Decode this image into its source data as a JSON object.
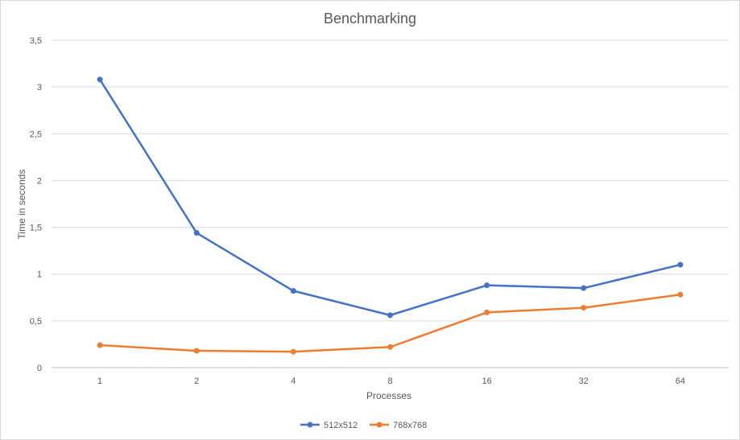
{
  "chart_data": {
    "type": "line",
    "title": "Benchmarking",
    "xlabel": "Processes",
    "ylabel": "Time in seconds",
    "categories": [
      "1",
      "2",
      "4",
      "8",
      "16",
      "32",
      "64"
    ],
    "y_ticks": [
      "0",
      "0,5",
      "1",
      "1,5",
      "2",
      "2,5",
      "3",
      "3,5"
    ],
    "ylim": [
      0,
      3.5
    ],
    "grid": "horizontal",
    "legend_position": "bottom",
    "series": [
      {
        "name": "512x512",
        "color": "#4472c4",
        "values": [
          3.08,
          1.44,
          0.82,
          0.56,
          0.88,
          0.85,
          1.1
        ]
      },
      {
        "name": "768x768",
        "color": "#ed7d31",
        "values": [
          0.24,
          0.18,
          0.17,
          0.22,
          0.59,
          0.64,
          0.78
        ]
      }
    ]
  }
}
